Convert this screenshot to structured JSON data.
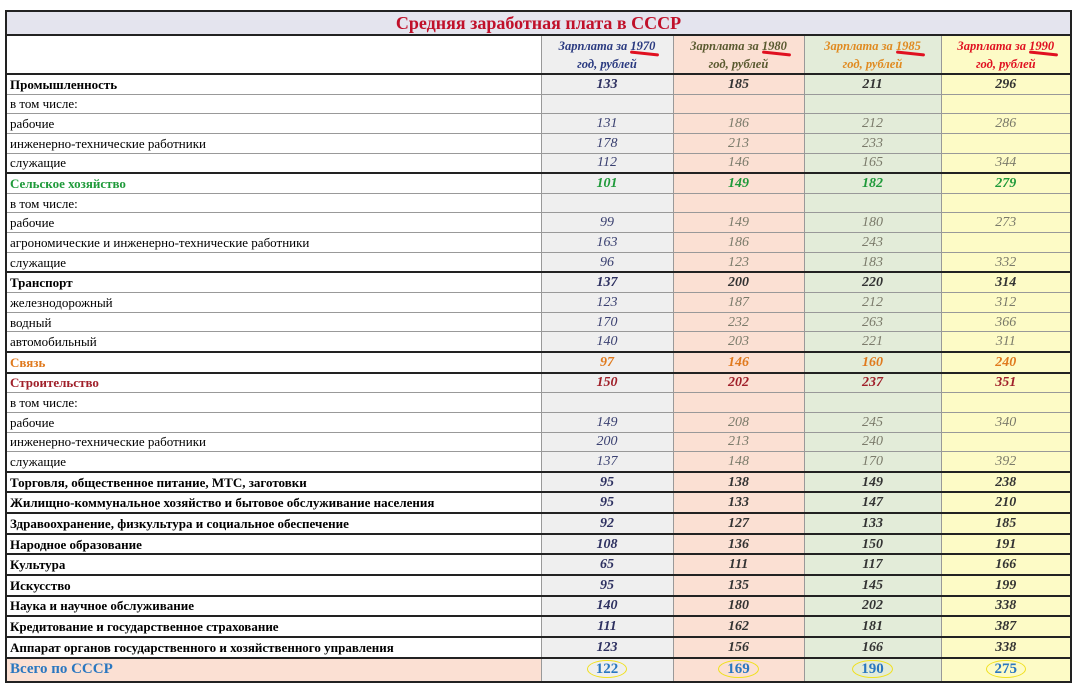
{
  "title": "Средняя заработная плата в СССР",
  "columns": [
    {
      "prefix": "Зарплата за ",
      "year": "1970",
      "suffix": "год, рублей"
    },
    {
      "prefix": "Зарплата за ",
      "year": "1980",
      "suffix": "год, рублей"
    },
    {
      "prefix": "Зарплата за ",
      "year": "1985",
      "suffix": "год, рублей"
    },
    {
      "prefix": "Зарплата за ",
      "year": "1990",
      "suffix": "год, рублей"
    }
  ],
  "rows": [
    {
      "label": "Промышленность",
      "style": "bold",
      "values": [
        "133",
        "185",
        "211",
        "296"
      ]
    },
    {
      "label": "в том числе:",
      "style": "",
      "values": [
        "",
        "",
        "",
        ""
      ]
    },
    {
      "label": "рабочие",
      "style": "",
      "values": [
        "131",
        "186",
        "212",
        "286"
      ]
    },
    {
      "label": "инженерно-технические работники",
      "style": "",
      "values": [
        "178",
        "213",
        "233",
        ""
      ]
    },
    {
      "label": "служащие",
      "style": "",
      "values": [
        "112",
        "146",
        "165",
        "344"
      ]
    },
    {
      "label": "Сельское хозяйство",
      "style": "bold green",
      "values": [
        "101",
        "149",
        "182",
        "279"
      ]
    },
    {
      "label": "в том числе:",
      "style": "",
      "values": [
        "",
        "",
        "",
        ""
      ]
    },
    {
      "label": "рабочие",
      "style": "",
      "values": [
        "99",
        "149",
        "180",
        "273"
      ]
    },
    {
      "label": "агрономические и инженерно-технические работники",
      "style": "",
      "values": [
        "163",
        "186",
        "243",
        ""
      ]
    },
    {
      "label": "служащие",
      "style": "",
      "values": [
        "96",
        "123",
        "183",
        "332"
      ]
    },
    {
      "label": "Транспорт",
      "style": "bold",
      "values": [
        "137",
        "200",
        "220",
        "314"
      ]
    },
    {
      "label": "железнодорожный",
      "style": "",
      "values": [
        "123",
        "187",
        "212",
        "312"
      ]
    },
    {
      "label": "водный",
      "style": "",
      "values": [
        "170",
        "232",
        "263",
        "366"
      ]
    },
    {
      "label": "автомобильный",
      "style": "",
      "values": [
        "140",
        "203",
        "221",
        "311"
      ]
    },
    {
      "label": "Связь",
      "style": "bold orange",
      "values": [
        "97",
        "146",
        "160",
        "240"
      ]
    },
    {
      "label": "Строительство",
      "style": "bold red",
      "values": [
        "150",
        "202",
        "237",
        "351"
      ]
    },
    {
      "label": "в том числе:",
      "style": "",
      "values": [
        "",
        "",
        "",
        ""
      ]
    },
    {
      "label": "рабочие",
      "style": "",
      "values": [
        "149",
        "208",
        "245",
        "340"
      ]
    },
    {
      "label": "инженерно-технические работники",
      "style": "",
      "values": [
        "200",
        "213",
        "240",
        ""
      ]
    },
    {
      "label": "служащие",
      "style": "",
      "values": [
        "137",
        "148",
        "170",
        "392"
      ]
    },
    {
      "label": "Торговля, общественное питание, МТС, заготовки",
      "style": "bold",
      "values": [
        "95",
        "138",
        "149",
        "238"
      ]
    },
    {
      "label": "Жилищно-коммунальное хозяйство и бытовое обслуживание населения",
      "style": "bold",
      "values": [
        "95",
        "133",
        "147",
        "210"
      ]
    },
    {
      "label": "Здравоохранение, физкультура и социальное обеспечение",
      "style": "bold",
      "values": [
        "92",
        "127",
        "133",
        "185"
      ]
    },
    {
      "label": "Народное образование",
      "style": "bold",
      "values": [
        "108",
        "136",
        "150",
        "191"
      ]
    },
    {
      "label": "Культура",
      "style": "bold",
      "values": [
        "65",
        "111",
        "117",
        "166"
      ]
    },
    {
      "label": "Искусство",
      "style": "bold",
      "values": [
        "95",
        "135",
        "145",
        "199"
      ]
    },
    {
      "label": "Наука и научное обслуживание",
      "style": "bold",
      "values": [
        "140",
        "180",
        "202",
        "338"
      ]
    },
    {
      "label": "Кредитование и государственное страхование",
      "style": "bold",
      "values": [
        "111",
        "162",
        "181",
        "387"
      ]
    },
    {
      "label": "Аппарат органов государственного и хозяйственного управления",
      "style": "bold",
      "values": [
        "123",
        "156",
        "166",
        "338"
      ]
    }
  ],
  "total": {
    "label": "Всего по СССР",
    "values": [
      "122",
      "169",
      "190",
      "275"
    ]
  },
  "colors": {
    "title": "#c0102a",
    "col1970": "#efefef",
    "col1980": "#fbe0d3",
    "col1985": "#e3ecd9",
    "col1990": "#fdfbc6",
    "total": "#2a77c0"
  }
}
